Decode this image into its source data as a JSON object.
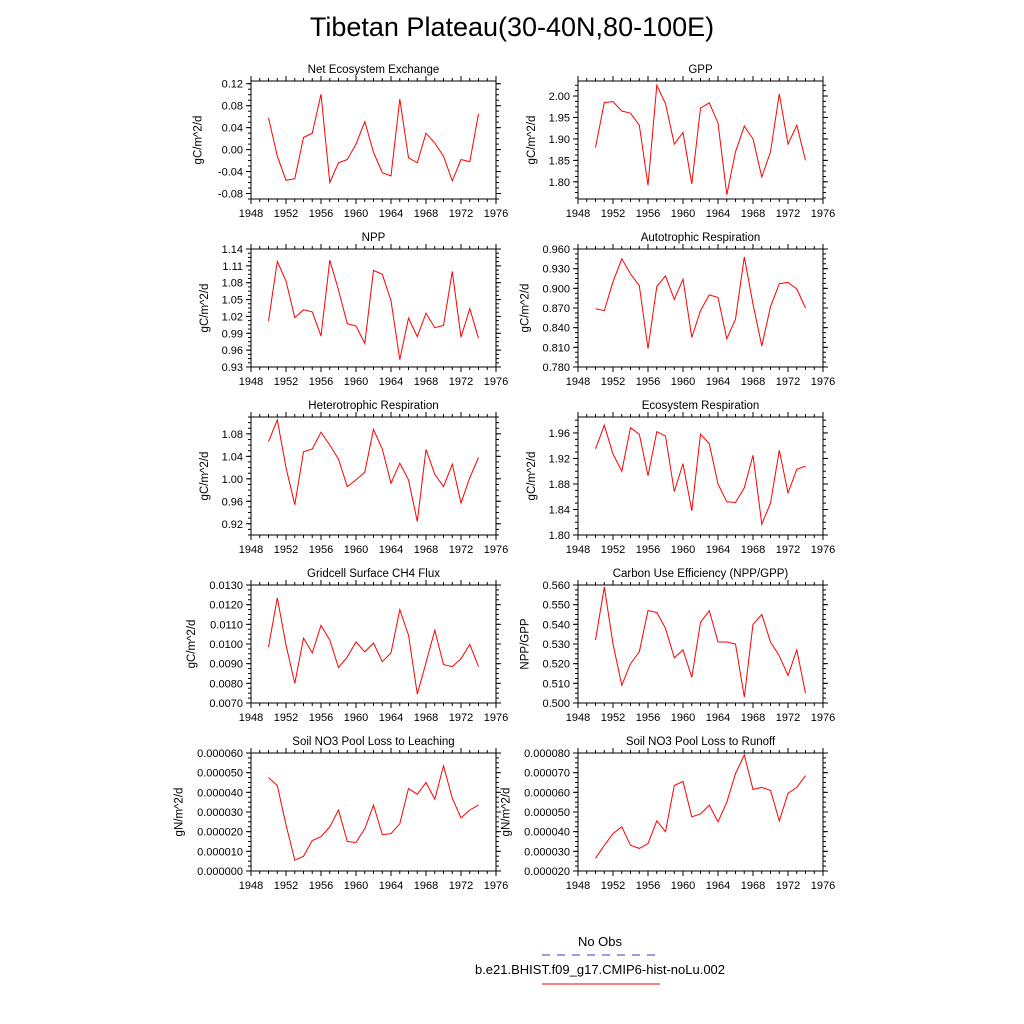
{
  "title": "Tibetan Plateau(30-40N,80-100E)",
  "legend": {
    "obs_label": "No Obs",
    "obs_color": "#3333cc",
    "run_label": "b.e21.BHIST.f09_g17.CMIP6-hist-noLu.002",
    "run_color": "#ff0000"
  },
  "series_color": "#ff0000",
  "chart_data": [
    {
      "type": "line",
      "title": "Net Ecosystem Exchange",
      "ylabel": "gC/m^2/d",
      "xlim": [
        1948,
        1976
      ],
      "xticks": [
        1948,
        1952,
        1956,
        1960,
        1964,
        1968,
        1972,
        1976
      ],
      "ylim": [
        -0.09,
        0.125
      ],
      "yticks": [
        -0.08,
        -0.04,
        0.0,
        0.04,
        0.08,
        0.12
      ],
      "ytick_labels": [
        "-0.08",
        "-0.04",
        "0.00",
        "0.04",
        "0.08",
        "0.12"
      ],
      "x": [
        1950,
        1951,
        1952,
        1953,
        1954,
        1955,
        1956,
        1957,
        1958,
        1959,
        1960,
        1961,
        1962,
        1963,
        1964,
        1965,
        1966,
        1967,
        1968,
        1969,
        1970,
        1971,
        1972,
        1973,
        1974
      ],
      "y": [
        0.058,
        -0.012,
        -0.056,
        -0.053,
        0.022,
        0.03,
        0.101,
        -0.06,
        -0.024,
        -0.018,
        0.01,
        0.051,
        -0.005,
        -0.042,
        -0.048,
        0.092,
        -0.015,
        -0.024,
        0.03,
        0.012,
        -0.012,
        -0.057,
        -0.018,
        -0.022,
        0.065
      ]
    },
    {
      "type": "line",
      "title": "GPP",
      "ylabel": "gC/m^2/d",
      "xlim": [
        1948,
        1976
      ],
      "xticks": [
        1948,
        1952,
        1956,
        1960,
        1964,
        1968,
        1972,
        1976
      ],
      "ylim": [
        1.76,
        2.035
      ],
      "yticks": [
        1.8,
        1.85,
        1.9,
        1.95,
        2.0
      ],
      "ytick_labels": [
        "1.80",
        "1.85",
        "1.90",
        "1.95",
        "2.00"
      ],
      "x": [
        1950,
        1951,
        1952,
        1953,
        1954,
        1955,
        1956,
        1957,
        1958,
        1959,
        1960,
        1961,
        1962,
        1963,
        1964,
        1965,
        1966,
        1967,
        1968,
        1969,
        1970,
        1971,
        1972,
        1973,
        1974
      ],
      "y": [
        1.88,
        1.985,
        1.987,
        1.965,
        1.96,
        1.932,
        1.792,
        2.025,
        1.982,
        1.888,
        1.915,
        1.795,
        1.972,
        1.984,
        1.937,
        1.77,
        1.87,
        1.93,
        1.9,
        1.811,
        1.87,
        2.005,
        1.888,
        1.932,
        1.85
      ]
    },
    {
      "type": "line",
      "title": "NPP",
      "ylabel": "gC/m^2/d",
      "xlim": [
        1948,
        1976
      ],
      "xticks": [
        1948,
        1952,
        1956,
        1960,
        1964,
        1968,
        1972,
        1976
      ],
      "ylim": [
        0.93,
        1.14
      ],
      "yticks": [
        0.93,
        0.96,
        0.99,
        1.02,
        1.05,
        1.08,
        1.11,
        1.14
      ],
      "ytick_labels": [
        "0.93",
        "0.96",
        "0.99",
        "1.02",
        "1.05",
        "1.08",
        "1.11",
        "1.14"
      ],
      "x": [
        1950,
        1951,
        1952,
        1953,
        1954,
        1955,
        1956,
        1957,
        1958,
        1959,
        1960,
        1961,
        1962,
        1963,
        1964,
        1965,
        1966,
        1967,
        1968,
        1969,
        1970,
        1971,
        1972,
        1973,
        1974
      ],
      "y": [
        1.012,
        1.118,
        1.083,
        1.018,
        1.032,
        1.028,
        0.985,
        1.12,
        1.067,
        1.007,
        1.003,
        0.972,
        1.102,
        1.095,
        1.048,
        0.943,
        1.017,
        0.984,
        1.026,
        1.0,
        1.004,
        1.1,
        0.983,
        1.034,
        0.981
      ]
    },
    {
      "type": "line",
      "title": "Autotrophic Respiration",
      "ylabel": "gC/m^2/d",
      "xlim": [
        1948,
        1976
      ],
      "xticks": [
        1948,
        1952,
        1956,
        1960,
        1964,
        1968,
        1972,
        1976
      ],
      "ylim": [
        0.78,
        0.96
      ],
      "yticks": [
        0.78,
        0.81,
        0.84,
        0.87,
        0.9,
        0.93,
        0.96
      ],
      "ytick_labels": [
        "0.780",
        "0.810",
        "0.840",
        "0.870",
        "0.900",
        "0.930",
        "0.960"
      ],
      "x": [
        1950,
        1951,
        1952,
        1953,
        1954,
        1955,
        1956,
        1957,
        1958,
        1959,
        1960,
        1961,
        1962,
        1963,
        1964,
        1965,
        1966,
        1967,
        1968,
        1969,
        1970,
        1971,
        1972,
        1973,
        1974
      ],
      "y": [
        0.869,
        0.866,
        0.91,
        0.945,
        0.922,
        0.904,
        0.808,
        0.903,
        0.919,
        0.883,
        0.914,
        0.825,
        0.866,
        0.89,
        0.886,
        0.823,
        0.853,
        0.948,
        0.876,
        0.812,
        0.872,
        0.907,
        0.909,
        0.899,
        0.87
      ]
    },
    {
      "type": "line",
      "title": "Heterotrophic Respiration",
      "ylabel": "gC/m^2/d",
      "xlim": [
        1948,
        1976
      ],
      "xticks": [
        1948,
        1952,
        1956,
        1960,
        1964,
        1968,
        1972,
        1976
      ],
      "ylim": [
        0.9,
        1.11
      ],
      "yticks": [
        0.92,
        0.96,
        1.0,
        1.04,
        1.08
      ],
      "ytick_labels": [
        "0.92",
        "0.96",
        "1.00",
        "1.04",
        "1.08"
      ],
      "x": [
        1950,
        1951,
        1952,
        1953,
        1954,
        1955,
        1956,
        1957,
        1958,
        1959,
        1960,
        1961,
        1962,
        1963,
        1964,
        1965,
        1966,
        1967,
        1968,
        1969,
        1970,
        1971,
        1972,
        1973,
        1974
      ],
      "y": [
        1.066,
        1.105,
        1.02,
        0.954,
        1.048,
        1.053,
        1.083,
        1.06,
        1.035,
        0.986,
        0.998,
        1.012,
        1.088,
        1.053,
        0.992,
        1.028,
        0.998,
        0.924,
        1.052,
        1.008,
        0.986,
        1.026,
        0.957,
        1.002,
        1.038
      ]
    },
    {
      "type": "line",
      "title": "Ecosystem Respiration",
      "ylabel": "gC/m^2/d",
      "xlim": [
        1948,
        1976
      ],
      "xticks": [
        1948,
        1952,
        1956,
        1960,
        1964,
        1968,
        1972,
        1976
      ],
      "ylim": [
        1.8,
        1.985
      ],
      "yticks": [
        1.8,
        1.84,
        1.88,
        1.92,
        1.96
      ],
      "ytick_labels": [
        "1.80",
        "1.84",
        "1.88",
        "1.92",
        "1.96"
      ],
      "x": [
        1950,
        1951,
        1952,
        1953,
        1954,
        1955,
        1956,
        1957,
        1958,
        1959,
        1960,
        1961,
        1962,
        1963,
        1964,
        1965,
        1966,
        1967,
        1968,
        1969,
        1970,
        1971,
        1972,
        1973,
        1974
      ],
      "y": [
        1.935,
        1.972,
        1.927,
        1.9,
        1.968,
        1.958,
        1.893,
        1.962,
        1.955,
        1.868,
        1.912,
        1.838,
        1.958,
        1.943,
        1.88,
        1.852,
        1.851,
        1.874,
        1.925,
        1.817,
        1.85,
        1.933,
        1.866,
        1.903,
        1.908
      ]
    },
    {
      "type": "line",
      "title": "Gridcell Surface CH4 Flux",
      "ylabel": "gC/m^2/d",
      "xlim": [
        1948,
        1976
      ],
      "xticks": [
        1948,
        1952,
        1956,
        1960,
        1964,
        1968,
        1972,
        1976
      ],
      "ylim": [
        0.007,
        0.013
      ],
      "yticks": [
        0.007,
        0.008,
        0.009,
        0.01,
        0.011,
        0.012,
        0.013
      ],
      "ytick_labels": [
        "0.0070",
        "0.0080",
        "0.0090",
        "0.0100",
        "0.0110",
        "0.0120",
        "0.0130"
      ],
      "x": [
        1950,
        1951,
        1952,
        1953,
        1954,
        1955,
        1956,
        1957,
        1958,
        1959,
        1960,
        1961,
        1962,
        1963,
        1964,
        1965,
        1966,
        1967,
        1968,
        1969,
        1970,
        1971,
        1972,
        1973,
        1974
      ],
      "y": [
        0.00985,
        0.01235,
        0.00995,
        0.008,
        0.0103,
        0.00955,
        0.01095,
        0.0102,
        0.0088,
        0.00935,
        0.0101,
        0.0096,
        0.01005,
        0.0091,
        0.00955,
        0.01175,
        0.01045,
        0.00745,
        0.00905,
        0.0107,
        0.00895,
        0.00885,
        0.00925,
        0.00998,
        0.00885
      ]
    },
    {
      "type": "line",
      "title": "Carbon Use Efficiency (NPP/GPP)",
      "ylabel": "NPP/GPP",
      "xlim": [
        1948,
        1976
      ],
      "xticks": [
        1948,
        1952,
        1956,
        1960,
        1964,
        1968,
        1972,
        1976
      ],
      "ylim": [
        0.5,
        0.56
      ],
      "yticks": [
        0.5,
        0.51,
        0.52,
        0.53,
        0.54,
        0.55,
        0.56
      ],
      "ytick_labels": [
        "0.500",
        "0.510",
        "0.520",
        "0.530",
        "0.540",
        "0.550",
        "0.560"
      ],
      "x": [
        1950,
        1951,
        1952,
        1953,
        1954,
        1955,
        1956,
        1957,
        1958,
        1959,
        1960,
        1961,
        1962,
        1963,
        1964,
        1965,
        1966,
        1967,
        1968,
        1969,
        1970,
        1971,
        1972,
        1973,
        1974
      ],
      "y": [
        0.532,
        0.559,
        0.53,
        0.509,
        0.52,
        0.526,
        0.547,
        0.546,
        0.538,
        0.523,
        0.527,
        0.513,
        0.541,
        0.547,
        0.531,
        0.531,
        0.53,
        0.503,
        0.54,
        0.545,
        0.531,
        0.524,
        0.514,
        0.527,
        0.505
      ]
    },
    {
      "type": "line",
      "title": "Soil NO3 Pool Loss to Leaching",
      "ylabel": "gN/m^2/d",
      "xlim": [
        1948,
        1976
      ],
      "xticks": [
        1948,
        1952,
        1956,
        1960,
        1964,
        1968,
        1972,
        1976
      ],
      "ylim": [
        0,
        6e-05
      ],
      "yticks": [
        0,
        1e-05,
        2e-05,
        3e-05,
        4e-05,
        5e-05,
        6e-05
      ],
      "ytick_labels": [
        "0.000000",
        "0.000010",
        "0.000020",
        "0.000030",
        "0.000040",
        "0.000050",
        "0.000060"
      ],
      "x": [
        1950,
        1951,
        1952,
        1953,
        1954,
        1955,
        1956,
        1957,
        1958,
        1959,
        1960,
        1961,
        1962,
        1963,
        1964,
        1965,
        1966,
        1967,
        1968,
        1969,
        1970,
        1971,
        1972,
        1973,
        1974
      ],
      "y": [
        4.75e-05,
        4.35e-05,
        2.35e-05,
        5.5e-06,
        7.5e-06,
        1.55e-05,
        1.75e-05,
        2.25e-05,
        3.1e-05,
        1.5e-05,
        1.45e-05,
        2.15e-05,
        3.35e-05,
        1.85e-05,
        1.9e-05,
        2.4e-05,
        4.2e-05,
        3.9e-05,
        4.5e-05,
        3.65e-05,
        5.35e-05,
        3.7e-05,
        2.7e-05,
        3.1e-05,
        3.35e-05
      ]
    },
    {
      "type": "line",
      "title": "Soil NO3 Pool Loss to Runoff",
      "ylabel": "gN/m^2/d",
      "xlim": [
        1948,
        1976
      ],
      "xticks": [
        1948,
        1952,
        1956,
        1960,
        1964,
        1968,
        1972,
        1976
      ],
      "ylim": [
        2e-05,
        8e-05
      ],
      "yticks": [
        2e-05,
        3e-05,
        4e-05,
        5e-05,
        6e-05,
        7e-05,
        8e-05
      ],
      "ytick_labels": [
        "0.000020",
        "0.000030",
        "0.000040",
        "0.000050",
        "0.000060",
        "0.000070",
        "0.000080"
      ],
      "x": [
        1950,
        1951,
        1952,
        1953,
        1954,
        1955,
        1956,
        1957,
        1958,
        1959,
        1960,
        1961,
        1962,
        1963,
        1964,
        1965,
        1966,
        1967,
        1968,
        1969,
        1970,
        1971,
        1972,
        1973,
        1974
      ],
      "y": [
        2.65e-05,
        3.3e-05,
        3.9e-05,
        4.25e-05,
        3.3e-05,
        3.15e-05,
        3.4e-05,
        4.55e-05,
        4e-05,
        6.35e-05,
        6.55e-05,
        4.75e-05,
        4.9e-05,
        5.35e-05,
        4.5e-05,
        5.5e-05,
        6.95e-05,
        7.9e-05,
        6.15e-05,
        6.25e-05,
        6.1e-05,
        4.55e-05,
        5.95e-05,
        6.25e-05,
        6.85e-05
      ]
    }
  ]
}
